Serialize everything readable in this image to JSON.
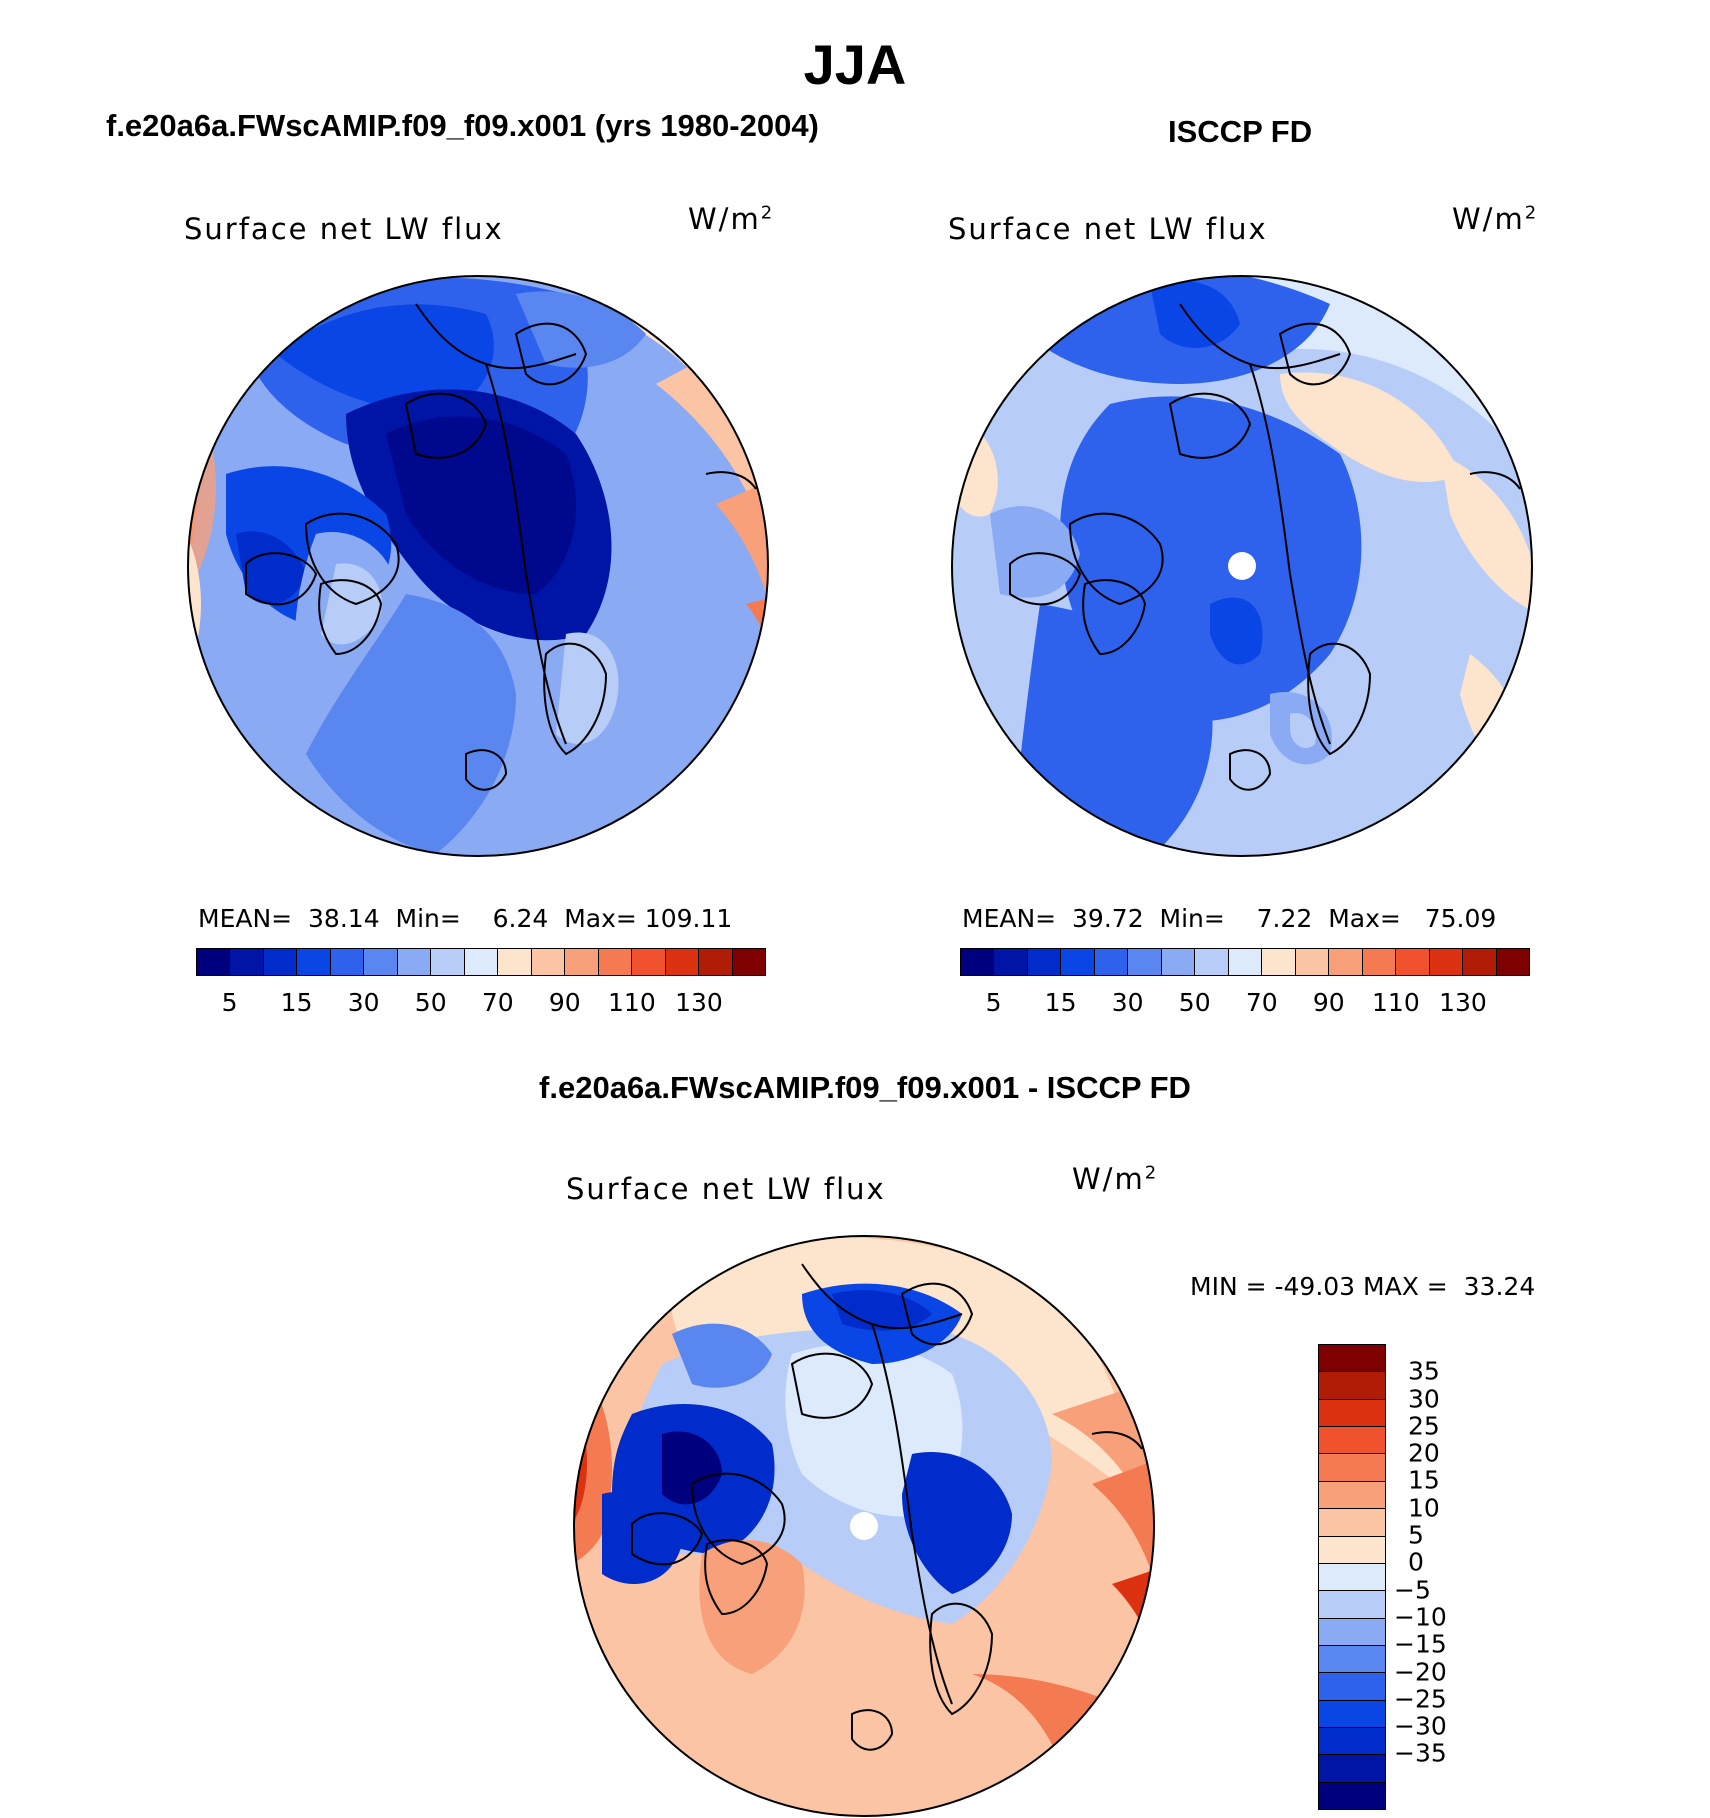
{
  "figure": {
    "season": "JJA"
  },
  "panels": {
    "model": {
      "title": "f.e20a6a.FWscAMIP.f09_f09.x001 (yrs 1980-2004)",
      "variable": "Surface net LW flux",
      "unit_base": "W/m",
      "unit_exp": "2",
      "mean_label": "MEAN=",
      "mean_value": "38.14",
      "min_label": "Min=",
      "min_value": "6.24",
      "max_label": "Max=",
      "max_value": "109.11"
    },
    "obs": {
      "title": "ISCCP FD",
      "variable": "Surface net LW flux",
      "unit_base": "W/m",
      "unit_exp": "2",
      "mean_label": "MEAN=",
      "mean_value": "39.72",
      "min_label": "Min=",
      "min_value": "7.22",
      "max_label": "Max=",
      "max_value": "75.09"
    },
    "diff": {
      "title": "f.e20a6a.FWscAMIP.f09_f09.x001 - ISCCP FD",
      "variable": "Surface net LW flux",
      "unit_base": "W/m",
      "unit_exp": "2",
      "min_label": "MIN =",
      "min_value": "-49.03",
      "max_label": "MAX =",
      "max_value": "33.24"
    }
  },
  "colorbar_abs": {
    "colors": [
      "#00007f",
      "#0014a6",
      "#002ccc",
      "#0a46e6",
      "#2e62ec",
      "#5a86f0",
      "#8aaaf4",
      "#b8ccf8",
      "#dceafc",
      "#fde4cc",
      "#fbc4a4",
      "#f8a07a",
      "#f47a52",
      "#f0522e",
      "#dc3212",
      "#b01c06",
      "#7f0000"
    ],
    "tick_labels": [
      "5",
      "15",
      "30",
      "50",
      "70",
      "90",
      "110",
      "130"
    ]
  },
  "colorbar_diff": {
    "colors": [
      "#7f0000",
      "#b01c06",
      "#dc3212",
      "#f0522e",
      "#f47a52",
      "#f8a07a",
      "#fbc4a4",
      "#fde4cc",
      "#dceafc",
      "#b8ccf8",
      "#8aaaf4",
      "#5a86f0",
      "#2e62ec",
      "#0a46e6",
      "#002ccc",
      "#0014a6",
      "#00007f"
    ],
    "tick_labels": [
      "35",
      "30",
      "25",
      "20",
      "15",
      "10",
      "5",
      "0",
      "−5",
      "−10",
      "−15",
      "−20",
      "−25",
      "−30",
      "−35"
    ]
  },
  "maps": {
    "model_map": "polar stereographic Arctic field, model",
    "obs_map": "polar stereographic Arctic field, observations",
    "diff_map": "polar stereographic Arctic field, difference"
  }
}
